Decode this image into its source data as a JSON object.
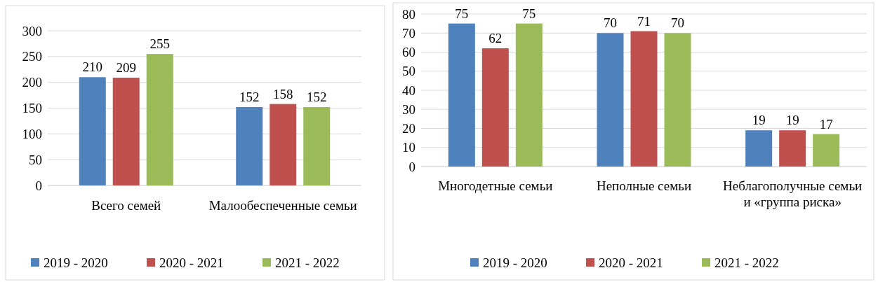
{
  "chart_data": [
    {
      "type": "bar",
      "categories": [
        "Всего семей",
        "Малообеспеченные семьи"
      ],
      "series": [
        {
          "name": "2019 - 2020",
          "color": "#4f81bd",
          "values": [
            210,
            152
          ]
        },
        {
          "name": "2020 - 2021",
          "color": "#c0504d",
          "values": [
            209,
            158
          ]
        },
        {
          "name": "2021 - 2022",
          "color": "#9bbb59",
          "values": [
            255,
            152
          ]
        }
      ],
      "ylim": [
        0,
        300
      ],
      "yticks": [
        0,
        50,
        100,
        150,
        200,
        250,
        300
      ],
      "grid": "y",
      "legend": "bottom",
      "data_labels": true
    },
    {
      "type": "bar",
      "categories": [
        "Многодетные семьи",
        "Неполные семьи",
        "Неблагополучные семьи и «группа риска»"
      ],
      "series": [
        {
          "name": "2019 - 2020",
          "color": "#4f81bd",
          "values": [
            75,
            70,
            19
          ]
        },
        {
          "name": "2020 - 2021",
          "color": "#c0504d",
          "values": [
            62,
            71,
            19
          ]
        },
        {
          "name": "2021 - 2022",
          "color": "#9bbb59",
          "values": [
            75,
            70,
            17
          ]
        }
      ],
      "ylim": [
        0,
        80
      ],
      "yticks": [
        0,
        10,
        20,
        30,
        40,
        50,
        60,
        70,
        80
      ],
      "grid": "y",
      "legend": "bottom",
      "data_labels": true
    }
  ]
}
